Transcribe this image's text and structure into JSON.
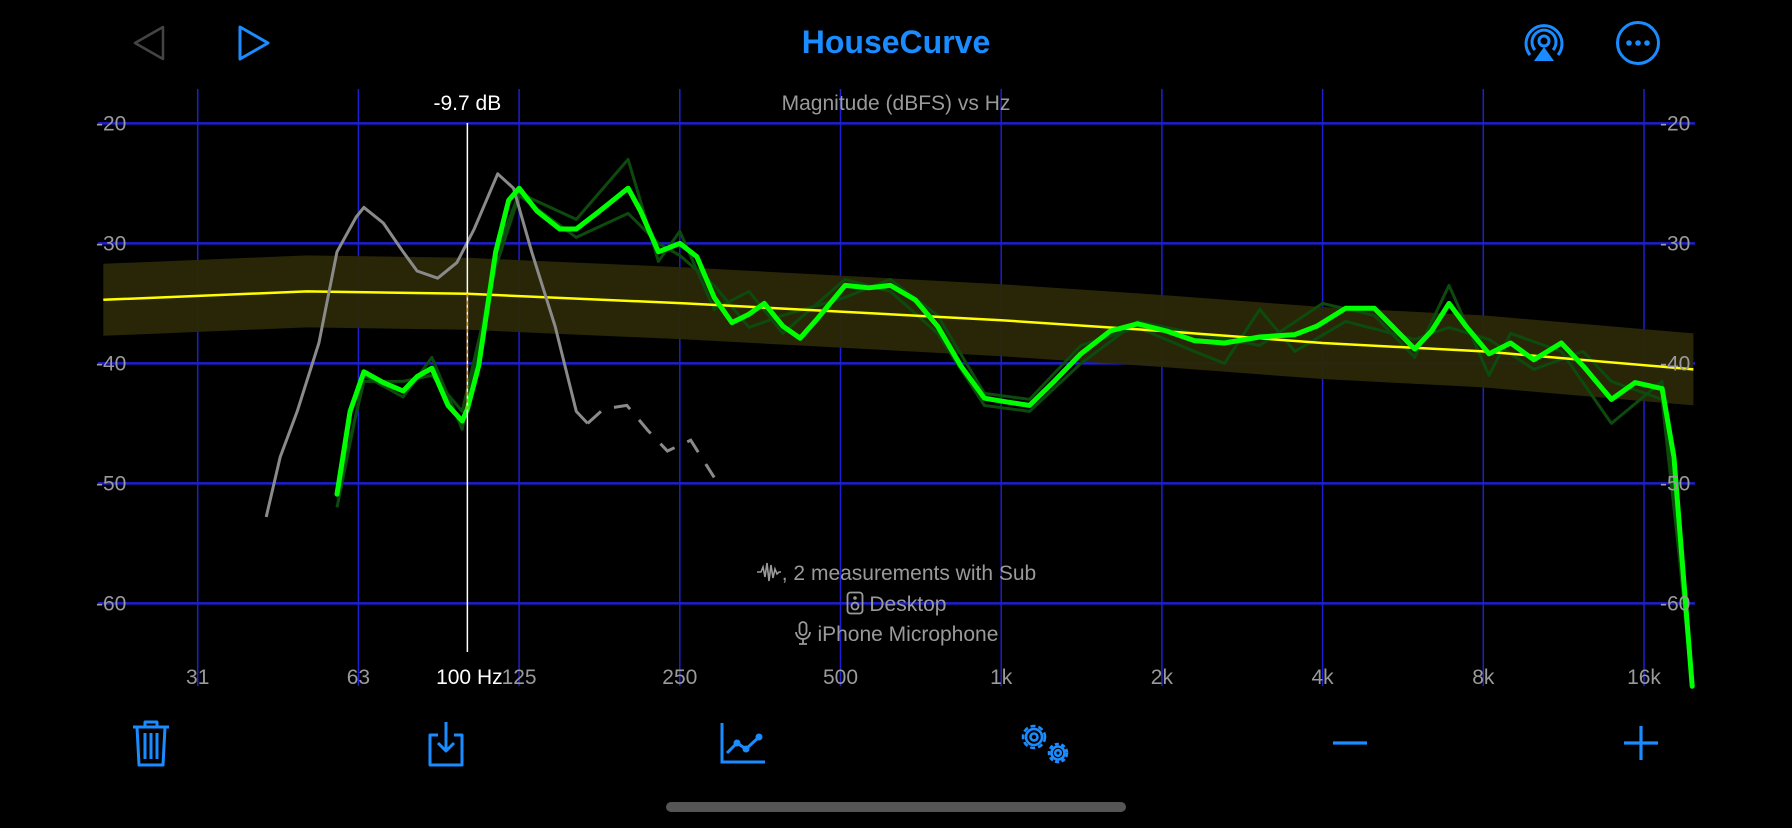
{
  "header": {
    "title": "HouseCurve",
    "back_icon": "triangle-left-icon",
    "play_icon": "triangle-right-icon",
    "airplay_icon": "airplay-audio-icon",
    "more_icon": "ellipsis-circle-icon"
  },
  "colors": {
    "accent": "#1a8cff",
    "grid": "#1e1ed2",
    "main_curve": "#00ff00",
    "measurement_curves": "#0d4a0d",
    "sub_curve": "#8a8a8a",
    "target": "#ffff00",
    "target_band": "#2a2806",
    "cursor": "#ffffff",
    "cursor_delta": "#ff8c00"
  },
  "info": {
    "measurements": ", 2 measurements with Sub",
    "speaker": "Desktop",
    "microphone": "iPhone Microphone"
  },
  "toolbar": {
    "icons": [
      "trash-icon",
      "export-icon",
      "chart-icon",
      "gears-icon",
      "minus-icon",
      "plus-icon"
    ]
  },
  "chart_data": {
    "type": "line",
    "title": "Magnitude (dBFS) vs Hz",
    "xscale": "log",
    "xlim": [
      20.8,
      19800
    ],
    "ylim": [
      -66,
      -18
    ],
    "grid": true,
    "x_ticks": [
      31.25,
      62.5,
      125,
      250,
      500,
      1000,
      2000,
      4000,
      8000,
      16000
    ],
    "x_tick_labels": [
      "31",
      "63",
      "125",
      "250",
      "500",
      "1k",
      "2k",
      "4k",
      "8k",
      "16k"
    ],
    "y_ticks": [
      -20,
      -30,
      -40,
      -50,
      -60
    ],
    "y_tick_labels": [
      "-20",
      "-30",
      "-40",
      "-50",
      "-60"
    ],
    "cursor": {
      "freq": 100,
      "freq_label": "100 Hz",
      "delta_label": "-9.7 dB",
      "target_db": -34.2,
      "curve_db": -43.9
    },
    "target": {
      "band_db": 3,
      "points": [
        [
          20.8,
          -34.7
        ],
        [
          50,
          -34
        ],
        [
          100,
          -34.2
        ],
        [
          256,
          -35
        ],
        [
          1000,
          -36.4
        ],
        [
          2000,
          -37.3
        ],
        [
          4000,
          -38.3
        ],
        [
          8000,
          -39
        ],
        [
          19800,
          -40.5
        ]
      ]
    },
    "sub_curve": {
      "points": [
        [
          42,
          -52.8
        ],
        [
          44.6,
          -47.8
        ],
        [
          48,
          -44
        ],
        [
          52.7,
          -38.3
        ],
        [
          57,
          -30.7
        ],
        [
          61.9,
          -27.8
        ],
        [
          64,
          -27
        ],
        [
          69.6,
          -28.3
        ],
        [
          75.8,
          -30.7
        ],
        [
          80.5,
          -32.3
        ],
        [
          88,
          -32.9
        ],
        [
          95.6,
          -31.6
        ],
        [
          103,
          -28.8
        ],
        [
          114,
          -24.2
        ],
        [
          122,
          -25.4
        ],
        [
          132,
          -30.7
        ],
        [
          146,
          -36.9
        ],
        [
          160,
          -44
        ],
        [
          168,
          -45
        ]
      ],
      "dashed_points": [
        [
          168,
          -45
        ],
        [
          180,
          -43.8
        ],
        [
          199,
          -43.5
        ],
        [
          218,
          -45.6
        ],
        [
          237,
          -47.3
        ],
        [
          262,
          -46.4
        ],
        [
          290,
          -49.5
        ]
      ]
    },
    "main_curve": {
      "points": [
        [
          57,
          -50.9
        ],
        [
          60.3,
          -44
        ],
        [
          64,
          -40.7
        ],
        [
          69.6,
          -41.6
        ],
        [
          75.8,
          -42.3
        ],
        [
          80.5,
          -41.1
        ],
        [
          85.8,
          -40.4
        ],
        [
          92,
          -43.5
        ],
        [
          97.8,
          -44.8
        ],
        [
          100,
          -43.8
        ],
        [
          105,
          -40.2
        ],
        [
          113,
          -30.7
        ],
        [
          119.5,
          -26.4
        ],
        [
          125,
          -25.4
        ],
        [
          135,
          -27.3
        ],
        [
          149,
          -28.8
        ],
        [
          160,
          -28.8
        ],
        [
          177,
          -27.3
        ],
        [
          200,
          -25.4
        ],
        [
          211,
          -27.3
        ],
        [
          228,
          -30.7
        ],
        [
          250,
          -30
        ],
        [
          269,
          -31.1
        ],
        [
          290,
          -34.5
        ],
        [
          313,
          -36.6
        ],
        [
          337,
          -35.9
        ],
        [
          360,
          -35
        ],
        [
          390,
          -36.9
        ],
        [
          420,
          -37.9
        ],
        [
          450,
          -36.4
        ],
        [
          510,
          -33.5
        ],
        [
          565,
          -33.7
        ],
        [
          620,
          -33.5
        ],
        [
          690,
          -34.7
        ],
        [
          760,
          -36.9
        ],
        [
          840,
          -40.2
        ],
        [
          930,
          -42.9
        ],
        [
          1020,
          -43.2
        ],
        [
          1130,
          -43.5
        ],
        [
          1250,
          -41.6
        ],
        [
          1410,
          -39.2
        ],
        [
          1600,
          -37.3
        ],
        [
          1800,
          -36.7
        ],
        [
          2040,
          -37.3
        ],
        [
          2300,
          -38.1
        ],
        [
          2620,
          -38.3
        ],
        [
          3050,
          -37.8
        ],
        [
          3550,
          -37.6
        ],
        [
          3900,
          -36.9
        ],
        [
          4420,
          -35.4
        ],
        [
          5000,
          -35.4
        ],
        [
          5400,
          -36.9
        ],
        [
          5950,
          -38.8
        ],
        [
          6400,
          -37.3
        ],
        [
          6900,
          -35
        ],
        [
          7420,
          -36.9
        ],
        [
          8200,
          -39.2
        ],
        [
          9000,
          -38.3
        ],
        [
          9950,
          -39.7
        ],
        [
          11200,
          -38.3
        ],
        [
          12300,
          -40.2
        ],
        [
          13900,
          -43
        ],
        [
          15400,
          -41.6
        ],
        [
          17300,
          -42.1
        ],
        [
          18200,
          -47.8
        ],
        [
          19700,
          -66.9
        ]
      ]
    },
    "measurement_curves": [
      {
        "points": [
          [
            57,
            -52
          ],
          [
            64,
            -41
          ],
          [
            75.8,
            -42.8
          ],
          [
            85.8,
            -39.5
          ],
          [
            97.8,
            -45.5
          ],
          [
            113,
            -31
          ],
          [
            125,
            -25.8
          ],
          [
            160,
            -28
          ],
          [
            200,
            -23
          ],
          [
            228,
            -31.5
          ],
          [
            250,
            -29
          ],
          [
            290,
            -35.5
          ],
          [
            337,
            -34
          ],
          [
            390,
            -37.5
          ],
          [
            510,
            -33
          ],
          [
            620,
            -34
          ],
          [
            760,
            -37.5
          ],
          [
            930,
            -43.5
          ],
          [
            1130,
            -44
          ],
          [
            1410,
            -40
          ],
          [
            1800,
            -36.5
          ],
          [
            2300,
            -37.5
          ],
          [
            3050,
            -38.5
          ],
          [
            4000,
            -35
          ],
          [
            5000,
            -36
          ],
          [
            5950,
            -39.5
          ],
          [
            6900,
            -33.5
          ],
          [
            8200,
            -41
          ],
          [
            9000,
            -37.5
          ],
          [
            11200,
            -39
          ],
          [
            13900,
            -45
          ],
          [
            17300,
            -41.5
          ],
          [
            19700,
            -67
          ]
        ]
      },
      {
        "points": [
          [
            57,
            -51
          ],
          [
            64,
            -41.5
          ],
          [
            75.8,
            -41.5
          ],
          [
            85.8,
            -41
          ],
          [
            97.8,
            -44
          ],
          [
            113,
            -32
          ],
          [
            125,
            -26
          ],
          [
            160,
            -29.5
          ],
          [
            200,
            -27.5
          ],
          [
            228,
            -30
          ],
          [
            250,
            -31
          ],
          [
            290,
            -33.5
          ],
          [
            337,
            -37
          ],
          [
            390,
            -36
          ],
          [
            510,
            -34.5
          ],
          [
            620,
            -33
          ],
          [
            760,
            -36
          ],
          [
            930,
            -42.5
          ],
          [
            1130,
            -43
          ],
          [
            1410,
            -38.5
          ],
          [
            1800,
            -37
          ],
          [
            2300,
            -39
          ],
          [
            2620,
            -40
          ],
          [
            3050,
            -35.5
          ],
          [
            3550,
            -39
          ],
          [
            4420,
            -36.5
          ],
          [
            5400,
            -37.5
          ],
          [
            5950,
            -38
          ],
          [
            6900,
            -37
          ],
          [
            8200,
            -38
          ],
          [
            9950,
            -40.5
          ],
          [
            12300,
            -39
          ],
          [
            13900,
            -41.5
          ],
          [
            17300,
            -43
          ],
          [
            19700,
            -66
          ]
        ]
      }
    ]
  }
}
